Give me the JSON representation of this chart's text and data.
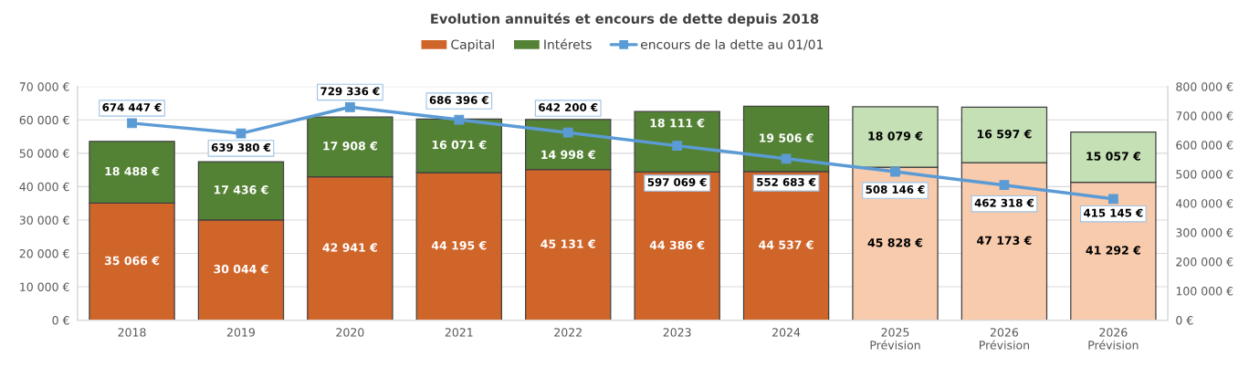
{
  "chart_data": {
    "type": "bar",
    "title": "Evolution annuités et encours de dette depuis 2018",
    "categories": [
      "2018",
      "2019",
      "2020",
      "2021",
      "2022",
      "2023",
      "2024",
      "2025\nPrévision",
      "2026\nPrévision",
      "2026\nPrévision"
    ],
    "stacked": true,
    "series": [
      {
        "name": "Capital",
        "color": "#d0652a",
        "colors": [
          "#d0652a",
          "#d0652a",
          "#d0652a",
          "#d0652a",
          "#d0652a",
          "#d0652a",
          "#d0652a",
          "#f8cbad",
          "#f8cbad",
          "#f8cbad"
        ],
        "values": [
          35066,
          30044,
          42941,
          44195,
          45131,
          44386,
          44537,
          45828,
          47173,
          41292
        ],
        "value_labels": [
          "35 066 €",
          "30 044 €",
          "42 941 €",
          "44 195 €",
          "45 131 €",
          "44 386 €",
          "44 537 €",
          "45 828 €",
          "47 173 €",
          "41 292 €"
        ]
      },
      {
        "name": "Intérets",
        "color": "#548235",
        "colors": [
          "#548235",
          "#548235",
          "#548235",
          "#548235",
          "#548235",
          "#548235",
          "#548235",
          "#c5e0b4",
          "#c5e0b4",
          "#c5e0b4"
        ],
        "values": [
          18488,
          17436,
          17908,
          16071,
          14998,
          18111,
          19506,
          18079,
          16597,
          15057
        ],
        "value_labels": [
          "18 488 €",
          "17 436 €",
          "17 908 €",
          "16 071 €",
          "14 998 €",
          "18 111 €",
          "19 506 €",
          "18 079 €",
          "16 597 €",
          "15 057 €"
        ]
      },
      {
        "name": "encours de la dette au 01/01",
        "type": "line",
        "axis": "y2",
        "color": "#5b9bd5",
        "values": [
          674447,
          639380,
          729336,
          686396,
          642200,
          597069,
          552683,
          508146,
          462318,
          415145
        ],
        "value_labels": [
          "674 447 €",
          "639 380 €",
          "729 336 €",
          "686 396 €",
          "642 200 €",
          "597 069 €",
          "552 683 €",
          "508 146 €",
          "462 318 €",
          "415 145 €"
        ]
      }
    ],
    "ylim": [
      0,
      70000
    ],
    "yticks": [
      {
        "value": 0,
        "label": "0 €"
      },
      {
        "value": 10000,
        "label": "10 000 €"
      },
      {
        "value": 20000,
        "label": "20 000 €"
      },
      {
        "value": 30000,
        "label": "30 000 €"
      },
      {
        "value": 40000,
        "label": "40 000 €"
      },
      {
        "value": 50000,
        "label": "50 000 €"
      },
      {
        "value": 60000,
        "label": "60 000 €"
      },
      {
        "value": 70000,
        "label": "70 000 €"
      }
    ],
    "y2lim": [
      0,
      800000
    ],
    "y2ticks": [
      {
        "value": 0,
        "label": "0 €"
      },
      {
        "value": 100000,
        "label": "100 000 €"
      },
      {
        "value": 200000,
        "label": "200 000 €"
      },
      {
        "value": 300000,
        "label": "300 000 €"
      },
      {
        "value": 400000,
        "label": "400 000 €"
      },
      {
        "value": 500000,
        "label": "500 000 €"
      },
      {
        "value": 600000,
        "label": "600 000 €"
      },
      {
        "value": 700000,
        "label": "700 000 €"
      },
      {
        "value": 800000,
        "label": "800 000 €"
      }
    ],
    "grid": "y",
    "legend": "top",
    "marker": "square",
    "line_style": "solid"
  }
}
